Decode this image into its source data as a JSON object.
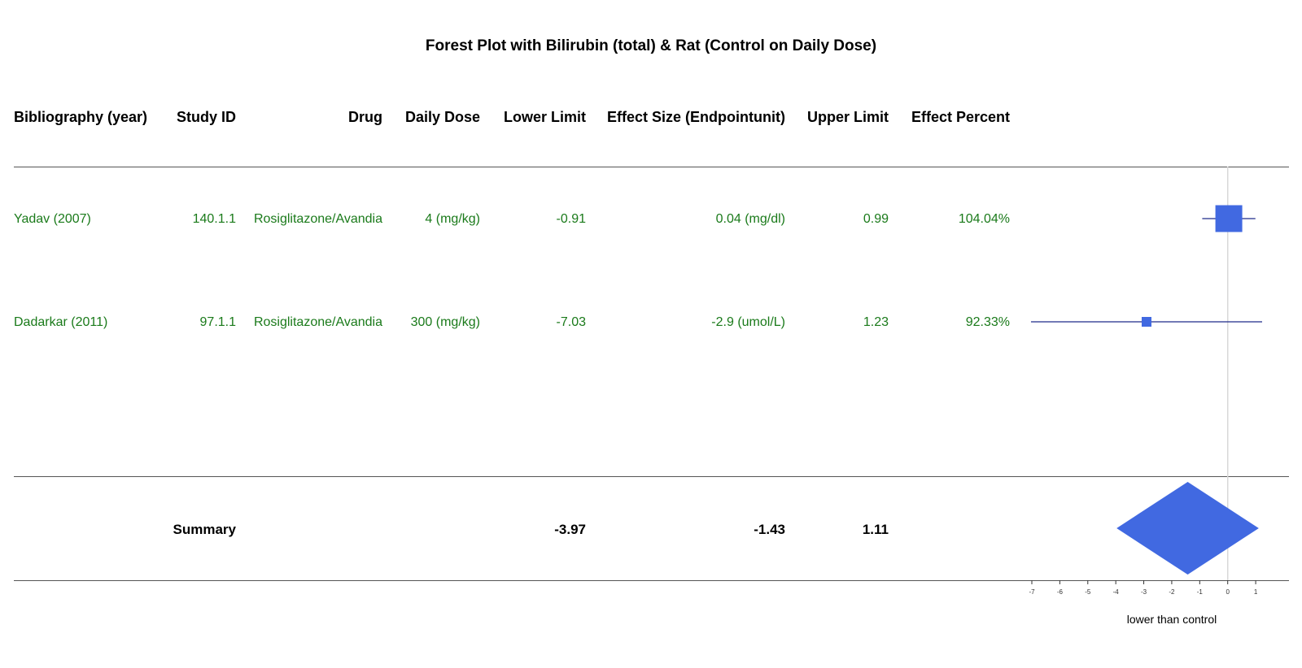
{
  "chart_data": {
    "type": "forest",
    "title": "Forest Plot with Bilirubin (total) & Rat (Control on Daily Dose)",
    "columns": [
      "Bibliography (year)",
      "Study ID",
      "Drug",
      "Daily Dose",
      "Lower Limit",
      "Effect Size (Endpointunit)",
      "Upper Limit",
      "Effect Percent"
    ],
    "rows": [
      {
        "bibliography": "Yadav (2007)",
        "study_id": "140.1.1",
        "drug": "Rosiglitazone/Avandia",
        "daily_dose": "4 (mg/kg)",
        "lower": "-0.91",
        "effect": "0.04 (mg/dl)",
        "upper": "0.99",
        "percent": "104.04%",
        "plot_lower": -0.91,
        "plot_effect": 0.04,
        "plot_upper": 0.99,
        "weight": "large"
      },
      {
        "bibliography": "Dadarkar (2011)",
        "study_id": "97.1.1",
        "drug": "Rosiglitazone/Avandia",
        "daily_dose": "300 (mg/kg)",
        "lower": "-7.03",
        "effect": "-2.9 (umol/L)",
        "upper": "1.23",
        "percent": "92.33%",
        "plot_lower": -7.03,
        "plot_effect": -2.9,
        "plot_upper": 1.23,
        "weight": "small"
      }
    ],
    "summary": {
      "label": "Summary",
      "lower": "-3.97",
      "effect": "-1.43",
      "upper": "1.11",
      "plot_lower": -3.97,
      "plot_effect": -1.43,
      "plot_upper": 1.11
    },
    "x_ticks": [
      -7,
      -6,
      -5,
      -4,
      -3,
      -2,
      -1,
      0,
      1
    ],
    "xlim": [
      -7,
      1.23
    ],
    "xlabel": "lower than control",
    "reference_line": 0,
    "colors": {
      "marker": "#4169E1",
      "line": "#1f2a8a",
      "text": "#1a7a1a",
      "reference": "#d8d8d8",
      "rule": "#555555"
    }
  }
}
